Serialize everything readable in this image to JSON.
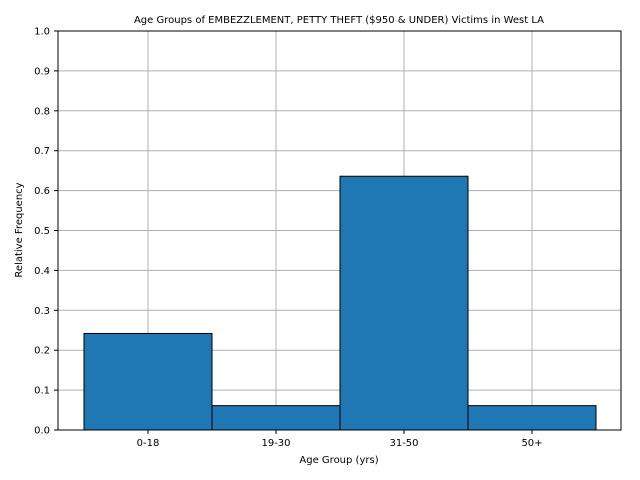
{
  "chart_data": {
    "type": "bar",
    "title": "Age Groups of EMBEZZLEMENT, PETTY THEFT ($950 & UNDER) Victims in West LA",
    "xlabel": "Age Group (yrs)",
    "ylabel": "Relative Frequency",
    "categories": [
      "0-18",
      "19-30",
      "31-50",
      "50+"
    ],
    "values": [
      0.242,
      0.061,
      0.636,
      0.061
    ],
    "ylim": [
      0.0,
      1.0
    ],
    "yticks": [
      "0.0",
      "0.1",
      "0.2",
      "0.3",
      "0.4",
      "0.5",
      "0.6",
      "0.7",
      "0.8",
      "0.9",
      "1.0"
    ],
    "grid": true,
    "bar_color": "#1f77b4",
    "edge_color": "#000000",
    "grid_color": "#b0b0b0"
  }
}
